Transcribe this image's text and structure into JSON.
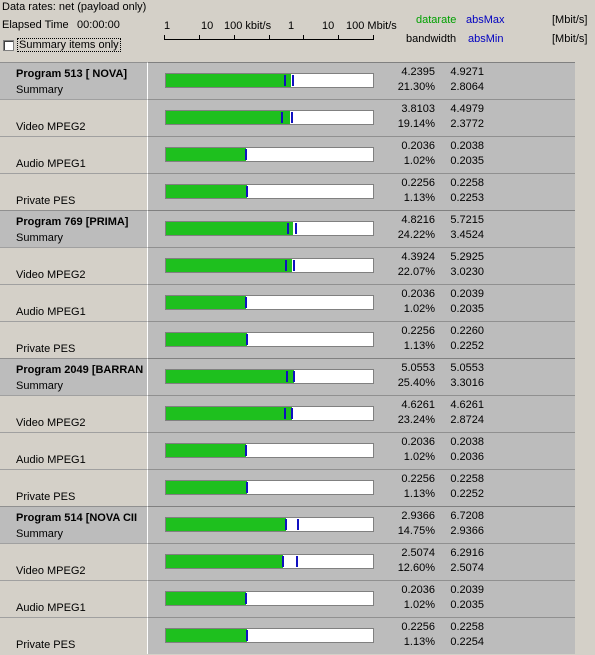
{
  "header": {
    "data_rates": "Data rates: net (payload only)",
    "elapsed_label": "Elapsed Time",
    "elapsed_value": "00:00:00",
    "summary_only_label": "Summary items only",
    "scale_ticks": [
      "1",
      "10",
      "100 kbit/s",
      "1",
      "10",
      "100 Mbit/s"
    ],
    "legend": {
      "datarate": "datarate",
      "absmax": "absMax",
      "bandwidth": "bandwidth",
      "absmin": "absMin",
      "unit1": "[Mbit/s]",
      "unit2": "[Mbit/s]"
    },
    "colors": {
      "datarate": "#00a000",
      "abs": "#0000c0",
      "bar_fill": "#1ec01e",
      "marker": "#1010c0"
    }
  },
  "rows": [
    {
      "type": "program",
      "name": "Program 513 [ NOVA]",
      "label": "Summary",
      "datarate": "4.2395",
      "absmax": "4.9271",
      "bandwidth": "21.30%",
      "absmin": "2.8064"
    },
    {
      "type": "stream",
      "name": "",
      "label": "Video MPEG2",
      "datarate": "3.8103",
      "absmax": "4.4979",
      "bandwidth": "19.14%",
      "absmin": "2.3772"
    },
    {
      "type": "stream",
      "name": "",
      "label": "Audio MPEG1",
      "datarate": "0.2036",
      "absmax": "0.2038",
      "bandwidth": "1.02%",
      "absmin": "0.2035"
    },
    {
      "type": "stream",
      "name": "",
      "label": "Private PES",
      "datarate": "0.2256",
      "absmax": "0.2258",
      "bandwidth": "1.13%",
      "absmin": "0.2253"
    },
    {
      "type": "program",
      "name": "Program 769 [PRIMA]",
      "label": "Summary",
      "datarate": "4.8216",
      "absmax": "5.7215",
      "bandwidth": "24.22%",
      "absmin": "3.4524"
    },
    {
      "type": "stream",
      "name": "",
      "label": "Video MPEG2",
      "datarate": "4.3924",
      "absmax": "5.2925",
      "bandwidth": "22.07%",
      "absmin": "3.0230"
    },
    {
      "type": "stream",
      "name": "",
      "label": "Audio MPEG1",
      "datarate": "0.2036",
      "absmax": "0.2039",
      "bandwidth": "1.02%",
      "absmin": "0.2035"
    },
    {
      "type": "stream",
      "name": "",
      "label": "Private PES",
      "datarate": "0.2256",
      "absmax": "0.2260",
      "bandwidth": "1.13%",
      "absmin": "0.2252"
    },
    {
      "type": "program",
      "name": "Program 2049 [BARRAN",
      "label": "Summary",
      "datarate": "5.0553",
      "absmax": "5.0553",
      "bandwidth": "25.40%",
      "absmin": "3.3016"
    },
    {
      "type": "stream",
      "name": "",
      "label": "Video MPEG2",
      "datarate": "4.6261",
      "absmax": "4.6261",
      "bandwidth": "23.24%",
      "absmin": "2.8724"
    },
    {
      "type": "stream",
      "name": "",
      "label": "Audio MPEG1",
      "datarate": "0.2036",
      "absmax": "0.2038",
      "bandwidth": "1.02%",
      "absmin": "0.2036"
    },
    {
      "type": "stream",
      "name": "",
      "label": "Private PES",
      "datarate": "0.2256",
      "absmax": "0.2258",
      "bandwidth": "1.13%",
      "absmin": "0.2252"
    },
    {
      "type": "program",
      "name": "Program 514 [NOVA CII",
      "label": "Summary",
      "datarate": "2.9366",
      "absmax": "6.7208",
      "bandwidth": "14.75%",
      "absmin": "2.9366"
    },
    {
      "type": "stream",
      "name": "",
      "label": "Video MPEG2",
      "datarate": "2.5074",
      "absmax": "6.2916",
      "bandwidth": "12.60%",
      "absmin": "2.5074"
    },
    {
      "type": "stream",
      "name": "",
      "label": "Audio MPEG1",
      "datarate": "0.2036",
      "absmax": "0.2039",
      "bandwidth": "1.02%",
      "absmin": "0.2035"
    },
    {
      "type": "stream",
      "name": "",
      "label": "Private PES",
      "datarate": "0.2256",
      "absmax": "0.2258",
      "bandwidth": "1.13%",
      "absmin": "0.2254"
    }
  ]
}
